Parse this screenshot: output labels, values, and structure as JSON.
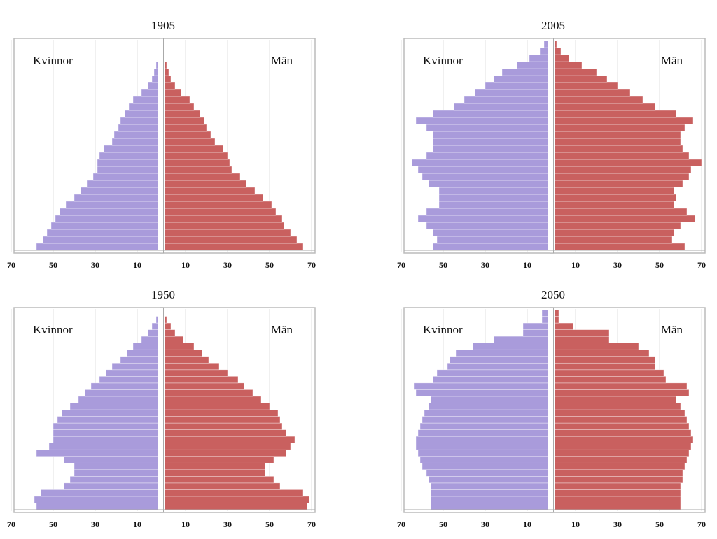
{
  "chart_data": [
    {
      "type": "pyramid",
      "title": "1905",
      "xlim": [
        0,
        70
      ],
      "xticks": [
        10,
        30,
        50,
        70
      ],
      "grid": true,
      "series": [
        {
          "name": "Kvinnor",
          "side": "left",
          "color": "#a99bdb",
          "values": [
            58,
            55,
            53,
            51,
            49,
            47,
            44,
            40,
            37,
            34,
            31,
            29,
            29,
            28,
            26,
            22,
            21,
            19,
            18,
            16,
            14,
            12,
            8,
            5,
            3,
            2,
            1,
            0,
            0,
            0
          ]
        },
        {
          "name": "Män",
          "side": "right",
          "color": "#c9605f",
          "values": [
            66,
            63,
            60,
            57,
            56,
            53,
            51,
            47,
            43,
            39,
            36,
            32,
            31,
            30,
            28,
            24,
            22,
            20,
            19,
            17,
            14,
            12,
            8,
            5,
            3,
            2,
            1,
            0,
            0,
            0
          ]
        }
      ]
    },
    {
      "type": "pyramid",
      "title": "2005",
      "xlim": [
        0,
        70
      ],
      "xticks": [
        10,
        30,
        50,
        70
      ],
      "grid": true,
      "series": [
        {
          "name": "Kvinnor",
          "side": "left",
          "color": "#a99bdb",
          "values": [
            55,
            53,
            55,
            58,
            62,
            58,
            52,
            52,
            52,
            57,
            60,
            62,
            65,
            58,
            55,
            55,
            55,
            58,
            63,
            55,
            45,
            40,
            35,
            30,
            26,
            22,
            15,
            9,
            4,
            2
          ]
        },
        {
          "name": "Män",
          "side": "right",
          "color": "#c9605f",
          "values": [
            62,
            56,
            57,
            60,
            67,
            63,
            57,
            58,
            57,
            61,
            64,
            65,
            70,
            64,
            61,
            60,
            60,
            62,
            66,
            58,
            48,
            42,
            36,
            30,
            25,
            20,
            13,
            7,
            3,
            1
          ]
        }
      ]
    },
    {
      "type": "pyramid",
      "title": "1950",
      "xlim": [
        0,
        70
      ],
      "xticks": [
        10,
        30,
        50,
        70
      ],
      "grid": true,
      "series": [
        {
          "name": "Kvinnor",
          "side": "left",
          "color": "#a99bdb",
          "values": [
            58,
            59,
            56,
            45,
            42,
            40,
            40,
            45,
            58,
            52,
            50,
            50,
            50,
            48,
            46,
            42,
            38,
            35,
            32,
            28,
            25,
            22,
            18,
            15,
            12,
            8,
            5,
            3,
            1,
            0
          ]
        },
        {
          "name": "Män",
          "side": "right",
          "color": "#c9605f",
          "values": [
            68,
            69,
            66,
            55,
            52,
            48,
            48,
            52,
            58,
            60,
            62,
            58,
            56,
            55,
            54,
            50,
            46,
            42,
            38,
            35,
            30,
            26,
            21,
            18,
            14,
            9,
            5,
            3,
            1,
            0
          ]
        }
      ]
    },
    {
      "type": "pyramid",
      "title": "2050",
      "xlim": [
        0,
        70
      ],
      "xticks": [
        10,
        30,
        50,
        70
      ],
      "grid": true,
      "series": [
        {
          "name": "Kvinnor",
          "side": "left",
          "color": "#a99bdb",
          "values": [
            56,
            56,
            56,
            56,
            57,
            58,
            60,
            61,
            62,
            63,
            63,
            62,
            61,
            60,
            59,
            57,
            56,
            63,
            64,
            55,
            53,
            48,
            47,
            44,
            36,
            26,
            12,
            12,
            3,
            3
          ]
        },
        {
          "name": "Män",
          "side": "right",
          "color": "#c9605f",
          "values": [
            60,
            60,
            60,
            60,
            61,
            61,
            62,
            63,
            64,
            65,
            66,
            65,
            64,
            63,
            62,
            60,
            58,
            64,
            63,
            53,
            52,
            48,
            48,
            45,
            40,
            26,
            26,
            9,
            2,
            2
          ]
        }
      ]
    }
  ]
}
